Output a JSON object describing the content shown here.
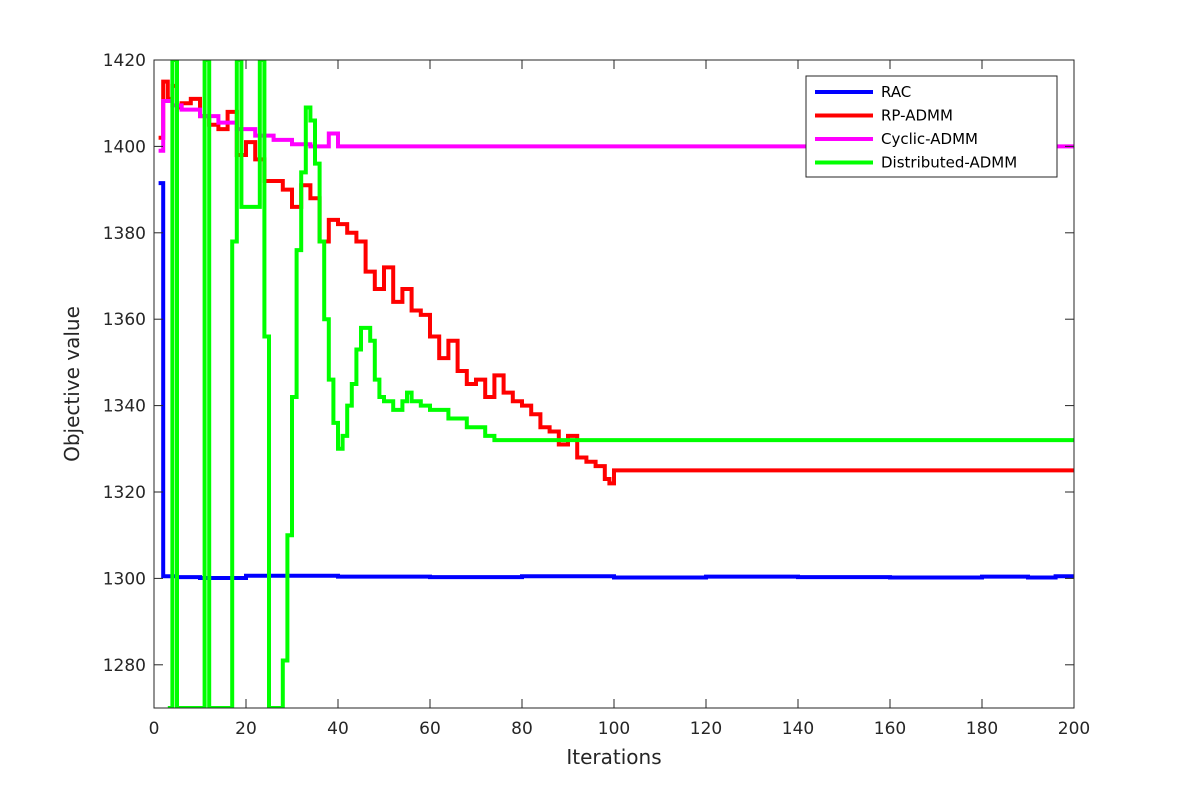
{
  "chart_data": {
    "type": "line",
    "title": "",
    "xlabel": "Iterations",
    "ylabel": "Objective value",
    "xlim": [
      0,
      200
    ],
    "ylim": [
      1270,
      1420
    ],
    "xticks": [
      0,
      20,
      40,
      60,
      80,
      100,
      120,
      140,
      160,
      180,
      200
    ],
    "yticks": [
      1280,
      1300,
      1320,
      1340,
      1360,
      1380,
      1400,
      1420
    ],
    "grid": false,
    "legend_position": "top-right",
    "series": [
      {
        "name": "RAC",
        "color": "#0000ff",
        "x": [
          1,
          2,
          3,
          5,
          10,
          20,
          40,
          60,
          80,
          100,
          120,
          140,
          160,
          180,
          190,
          196,
          200
        ],
        "y": [
          1391.5,
          1300.5,
          1300.5,
          1300.3,
          1300.1,
          1300.6,
          1300.4,
          1300.3,
          1300.5,
          1300.2,
          1300.4,
          1300.3,
          1300.2,
          1300.4,
          1300.2,
          1300.5,
          1300.4
        ]
      },
      {
        "name": "RP-ADMM",
        "color": "#ff0000",
        "x": [
          1,
          2,
          3,
          4,
          5,
          6,
          8,
          10,
          12,
          14,
          16,
          18,
          20,
          22,
          24,
          26,
          28,
          30,
          32,
          34,
          36,
          38,
          40,
          42,
          44,
          46,
          48,
          50,
          52,
          54,
          56,
          58,
          60,
          62,
          64,
          66,
          68,
          70,
          72,
          74,
          76,
          78,
          80,
          82,
          84,
          86,
          88,
          90,
          92,
          94,
          96,
          98,
          99,
          100,
          200
        ],
        "y": [
          1402,
          1415,
          1411,
          1414,
          1409,
          1410,
          1411,
          1407,
          1405,
          1404,
          1408,
          1398,
          1401,
          1397,
          1392,
          1392,
          1390,
          1386,
          1391,
          1388,
          1378,
          1383,
          1382,
          1380,
          1378,
          1371,
          1367,
          1372,
          1364,
          1367,
          1362,
          1361,
          1356,
          1351,
          1355,
          1348,
          1345,
          1346,
          1342,
          1347,
          1343,
          1341,
          1340,
          1338,
          1335,
          1334,
          1331,
          1333,
          1328,
          1327,
          1326,
          1323,
          1322,
          1325,
          1325
        ]
      },
      {
        "name": "Cyclic-ADMM",
        "color": "#ff00ff",
        "x": [
          1,
          2,
          4,
          6,
          10,
          14,
          18,
          22,
          26,
          30,
          34,
          36,
          38,
          39,
          40,
          200
        ],
        "y": [
          1399,
          1410.5,
          1409.5,
          1408.5,
          1407,
          1405.5,
          1404,
          1402.5,
          1401.5,
          1400.5,
          1400,
          1400,
          1403,
          1403,
          1400,
          1400
        ]
      },
      {
        "name": "Distributed-ADMM",
        "color": "#00ff00",
        "x": [
          3,
          4,
          5,
          10,
          11,
          12,
          16,
          17,
          18,
          19,
          23,
          24,
          25,
          26,
          27,
          28,
          29,
          30,
          31,
          32,
          33,
          34,
          35,
          36,
          37,
          38,
          39,
          40,
          41,
          42,
          43,
          44,
          45,
          46,
          47,
          48,
          49,
          50,
          52,
          54,
          55,
          56,
          58,
          60,
          64,
          68,
          72,
          74,
          80,
          100,
          150,
          200
        ],
        "y": [
          1270,
          1420,
          1270,
          1270,
          1420,
          1270,
          1270,
          1378,
          1420,
          1386,
          1420,
          1356,
          1270,
          1270,
          1270,
          1281,
          1310,
          1342,
          1376,
          1394,
          1409,
          1406,
          1396,
          1378,
          1360,
          1346,
          1336,
          1330,
          1333,
          1340,
          1345,
          1353,
          1358,
          1358,
          1355,
          1346,
          1342,
          1341,
          1339,
          1341,
          1343,
          1341,
          1340,
          1339,
          1337,
          1335,
          1333,
          1332,
          1332,
          1332,
          1332,
          1332
        ]
      }
    ]
  }
}
